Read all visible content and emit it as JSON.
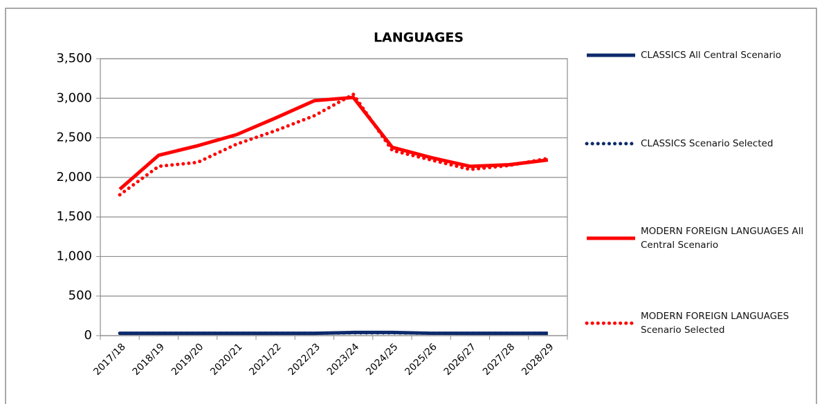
{
  "chart_data": {
    "type": "line",
    "title": "LANGUAGES",
    "categories": [
      "2017/18",
      "2018/19",
      "2019/20",
      "2020/21",
      "2021/22",
      "2022/23",
      "2023/24",
      "2024/25",
      "2025/26",
      "2026/27",
      "2027/28",
      "2028/29"
    ],
    "series": [
      {
        "name": "CLASSICS All Central Scenario",
        "color": "#0d2a6b",
        "style": "solid",
        "values": [
          30,
          30,
          30,
          30,
          30,
          30,
          40,
          40,
          30,
          30,
          30,
          30
        ]
      },
      {
        "name": "CLASSICS Scenario Selected",
        "color": "#0d2a6b",
        "style": "dotted",
        "values": [
          30,
          30,
          30,
          30,
          30,
          30,
          35,
          35,
          30,
          30,
          30,
          30
        ]
      },
      {
        "name": "MODERN FOREIGN LANGUAGES All Central Scenario",
        "color": "#ff0000",
        "style": "solid",
        "values": [
          1850,
          2280,
          2400,
          2540,
          2750,
          2970,
          3010,
          2380,
          2250,
          2140,
          2160,
          2220
        ]
      },
      {
        "name": "MODERN FOREIGN LANGUAGES Scenario Selected",
        "color": "#ff0000",
        "style": "dotted",
        "values": [
          1780,
          2140,
          2190,
          2420,
          2590,
          2780,
          3050,
          2340,
          2220,
          2100,
          2150,
          2240
        ]
      }
    ],
    "ylim": [
      0,
      3500
    ],
    "yticks": [
      0,
      500,
      {
        "value": 1000,
        "label": "1,000"
      },
      {
        "value": 1500,
        "label": "1,500"
      },
      {
        "value": 2000,
        "label": "2,000"
      },
      {
        "value": 2500,
        "label": "2,500"
      },
      {
        "value": 3000,
        "label": "3,000"
      },
      {
        "value": 3500,
        "label": "3,500"
      }
    ],
    "grid": true,
    "legend": "right"
  }
}
